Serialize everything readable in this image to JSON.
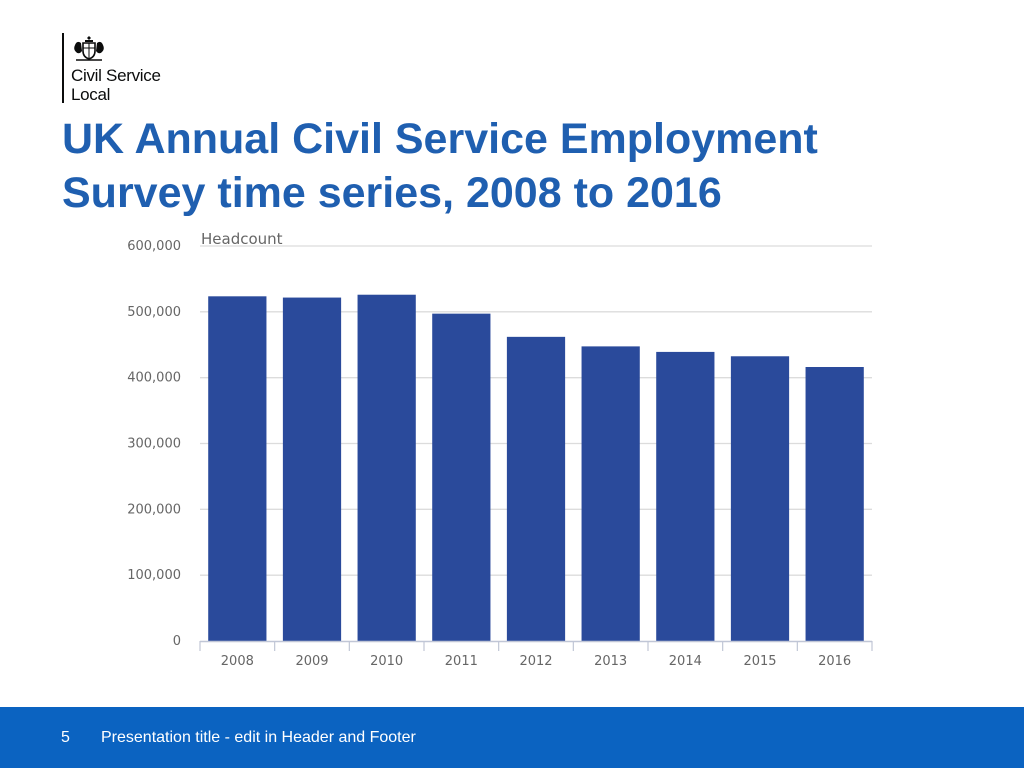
{
  "logo": {
    "org_line1": "Civil Service",
    "org_line2": "Local"
  },
  "title": "UK Annual Civil Service Employment Survey time series, 2008 to 2016",
  "chart_data": {
    "type": "bar",
    "title": "Headcount",
    "xlabel": "",
    "ylabel": "Headcount",
    "categories": [
      "2008",
      "2009",
      "2010",
      "2011",
      "2012",
      "2013",
      "2014",
      "2015",
      "2016"
    ],
    "values": [
      523580,
      521670,
      526000,
      497240,
      462000,
      447520,
      439130,
      432500,
      416200
    ],
    "ylim": [
      0,
      600000
    ],
    "yticks": [
      0,
      100000,
      200000,
      300000,
      400000,
      500000,
      600000
    ],
    "ytick_labels": [
      "0",
      "100,000",
      "200,000",
      "300,000",
      "400,000",
      "500,000",
      "600,000"
    ],
    "grid": true,
    "bar_color": "#2a4a9b"
  },
  "footer": {
    "page_number": "5",
    "text": "Presentation title - edit in Header and Footer"
  }
}
